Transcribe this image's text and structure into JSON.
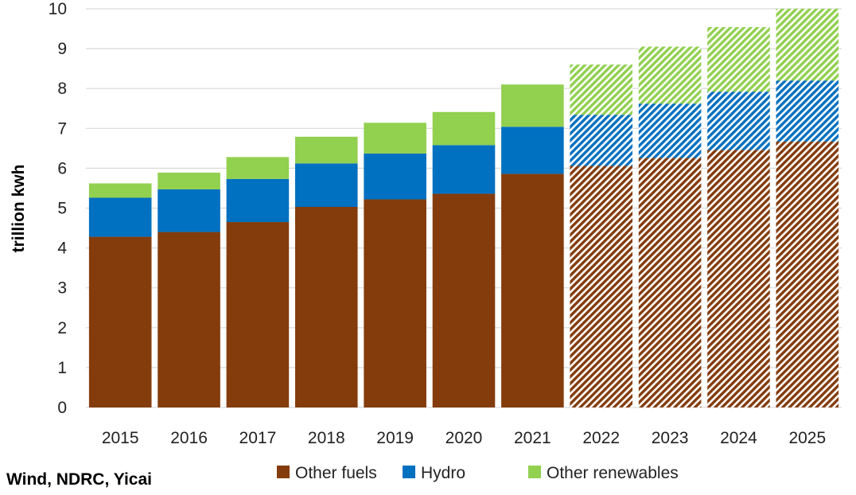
{
  "chart_data": {
    "type": "bar",
    "stacked": true,
    "title": "",
    "xlabel": "",
    "ylabel": "trillion kwh",
    "ylim": [
      0,
      10
    ],
    "yticks": [
      0,
      1,
      2,
      3,
      4,
      5,
      6,
      7,
      8,
      9,
      10
    ],
    "grid": true,
    "legend_position": "bottom",
    "categories": [
      "2015",
      "2016",
      "2017",
      "2018",
      "2019",
      "2020",
      "2021",
      "2022",
      "2023",
      "2024",
      "2025"
    ],
    "forecast_categories": [
      "2022",
      "2023",
      "2024",
      "2025"
    ],
    "series": [
      {
        "name": "Other fuels",
        "color": "#843C0C",
        "values": [
          4.28,
          4.4,
          4.65,
          5.03,
          5.22,
          5.36,
          5.86,
          6.06,
          6.26,
          6.46,
          6.67
        ]
      },
      {
        "name": "Hydro",
        "color": "#0070C0",
        "values": [
          0.98,
          1.07,
          1.08,
          1.09,
          1.15,
          1.22,
          1.18,
          1.28,
          1.36,
          1.46,
          1.53
        ]
      },
      {
        "name": "Other renewables",
        "color": "#92D050",
        "values": [
          0.36,
          0.42,
          0.55,
          0.67,
          0.77,
          0.83,
          1.06,
          1.26,
          1.43,
          1.62,
          1.8
        ]
      }
    ]
  },
  "source": "Wind, NDRC, Yicai"
}
